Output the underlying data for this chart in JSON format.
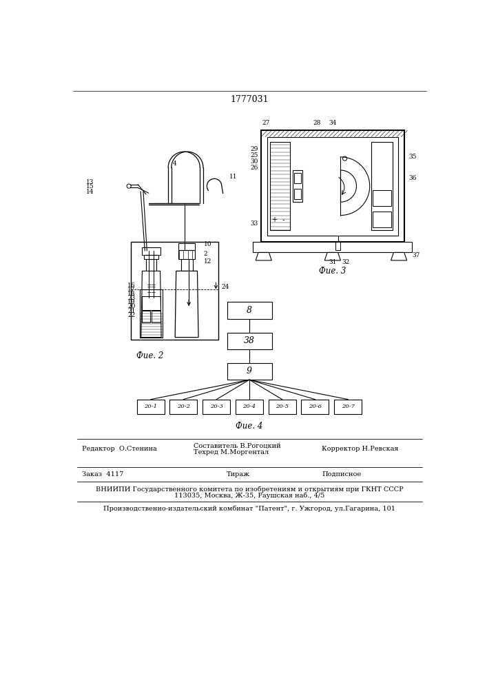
{
  "patent_number": "1777031",
  "fig2_caption": "Фие. 2",
  "fig3_caption": "Фие. 3",
  "fig4_caption": "Фие. 4",
  "fig4_boxes_top": [
    "8",
    "38",
    "9"
  ],
  "fig4_boxes_bottom": [
    "20-1",
    "20-2",
    "20-3",
    "20-4",
    "20-5",
    "20-6",
    "20-7"
  ],
  "editor_line": "Редактор  О.Стенина",
  "composer_line1": "Составитель В.Рогоцкий",
  "composer_line2": "Техред М.Моргентал",
  "corrector_line": "Корректор Н.Ревская",
  "order_line": "Заказ  4117",
  "tirazh_line": "Тираж",
  "podpisnoe_line": "Подписное",
  "vniiipi_line1": "ВНИИПИ Государственного комитета по изобретениям и открытиям при ГКНТ СССР",
  "vniiipi_line2": "113035, Москва, Ж-35, Раушская наб., 4/5",
  "production_line": "Производственно-издательский комбинат \"Патент\", г. Ужгород, ул.Гагарина, 101",
  "bg_color": "#ffffff",
  "line_color": "#000000"
}
